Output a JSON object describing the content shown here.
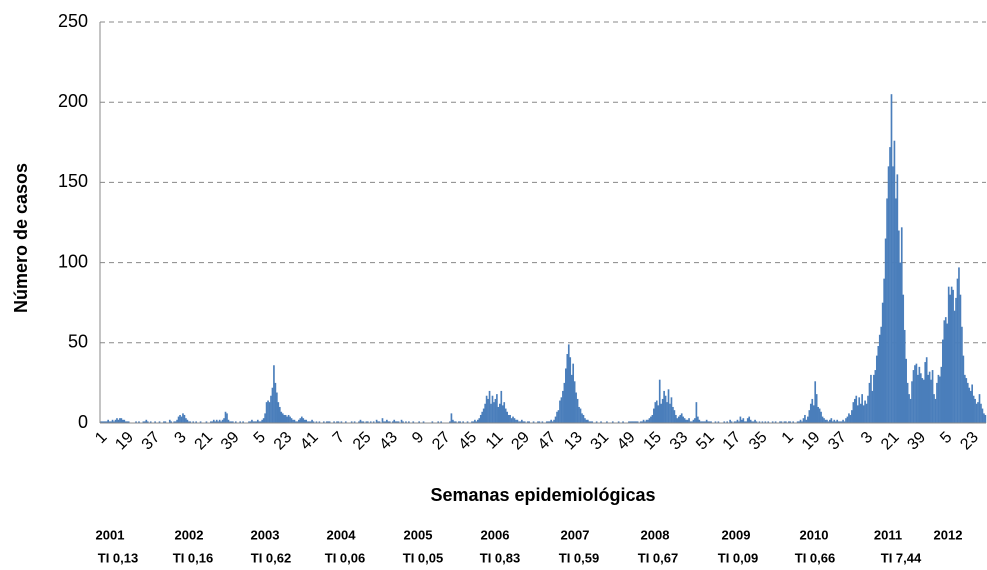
{
  "chart_data": {
    "type": "bar",
    "x_label": "Semanas epidemiológicas",
    "y_label": "Número de casos",
    "color": "#4a7ebb",
    "ylim": [
      0,
      250
    ],
    "yticks": [
      0,
      50,
      100,
      150,
      200,
      250
    ],
    "grid": true,
    "categories": [
      "1",
      null,
      null,
      null,
      null,
      null,
      null,
      null,
      null,
      null,
      null,
      null,
      null,
      null,
      null,
      null,
      null,
      null,
      "19",
      null,
      null,
      null,
      null,
      null,
      null,
      null,
      null,
      null,
      null,
      null,
      null,
      null,
      null,
      null,
      null,
      null,
      "37",
      null,
      null,
      null,
      null,
      null,
      null,
      null,
      null,
      null,
      null,
      null,
      null,
      null,
      null,
      null,
      null,
      null,
      "3",
      null,
      null,
      null,
      null,
      null,
      null,
      null,
      null,
      null,
      null,
      null,
      null,
      null,
      null,
      null,
      null,
      null,
      "21",
      null,
      null,
      null,
      null,
      null,
      null,
      null,
      null,
      null,
      null,
      null,
      null,
      null,
      null,
      null,
      null,
      null,
      "39",
      null,
      null,
      null,
      null,
      null,
      null,
      null,
      null,
      null,
      null,
      null,
      null,
      null,
      null,
      null,
      null,
      null,
      "5",
      null,
      null,
      null,
      null,
      null,
      null,
      null,
      null,
      null,
      null,
      null,
      null,
      null,
      null,
      null,
      null,
      null,
      "23",
      null,
      null,
      null,
      null,
      null,
      null,
      null,
      null,
      null,
      null,
      null,
      null,
      null,
      null,
      null,
      null,
      null,
      "41",
      null,
      null,
      null,
      null,
      null,
      null,
      null,
      null,
      null,
      null,
      null,
      null,
      null,
      null,
      null,
      null,
      null,
      "7",
      null,
      null,
      null,
      null,
      null,
      null,
      null,
      null,
      null,
      null,
      null,
      null,
      null,
      null,
      null,
      null,
      null,
      "25",
      null,
      null,
      null,
      null,
      null,
      null,
      null,
      null,
      null,
      null,
      null,
      null,
      null,
      null,
      null,
      null,
      null,
      "43",
      null,
      null,
      null,
      null,
      null,
      null,
      null,
      null,
      null,
      null,
      null,
      null,
      null,
      null,
      null,
      null,
      null,
      "9",
      null,
      null,
      null,
      null,
      null,
      null,
      null,
      null,
      null,
      null,
      null,
      null,
      null,
      null,
      null,
      null,
      null,
      "27",
      null,
      null,
      null,
      null,
      null,
      null,
      null,
      null,
      null,
      null,
      null,
      null,
      null,
      null,
      null,
      null,
      null,
      "45",
      null,
      null,
      null,
      null,
      null,
      null,
      null,
      null,
      null,
      null,
      null,
      null,
      null,
      null,
      null,
      null,
      null,
      "11",
      null,
      null,
      null,
      null,
      null,
      null,
      null,
      null,
      null,
      null,
      null,
      null,
      null,
      null,
      null,
      null,
      null,
      "29",
      null,
      null,
      null,
      null,
      null,
      null,
      null,
      null,
      null,
      null,
      null,
      null,
      null,
      null,
      null,
      null,
      null,
      "47",
      null,
      null,
      null,
      null,
      null,
      null,
      null,
      null,
      null,
      null,
      null,
      null,
      null,
      null,
      null,
      null,
      null,
      "13",
      null,
      null,
      null,
      null,
      null,
      null,
      null,
      null,
      null,
      null,
      null,
      null,
      null,
      null,
      null,
      null,
      null,
      "31",
      null,
      null,
      null,
      null,
      null,
      null,
      null,
      null,
      null,
      null,
      null,
      null,
      null,
      null,
      null,
      null,
      null,
      "49",
      null,
      null,
      null,
      null,
      null,
      null,
      null,
      null,
      null,
      null,
      null,
      null,
      null,
      null,
      null,
      null,
      null,
      "15",
      null,
      null,
      null,
      null,
      null,
      null,
      null,
      null,
      null,
      null,
      null,
      null,
      null,
      null,
      null,
      null,
      null,
      "33",
      null,
      null,
      null,
      null,
      null,
      null,
      null,
      null,
      null,
      null,
      null,
      null,
      null,
      null,
      null,
      null,
      null,
      "51",
      null,
      null,
      null,
      null,
      null,
      null,
      null,
      null,
      null,
      null,
      null,
      null,
      null,
      null,
      null,
      null,
      null,
      "17",
      null,
      null,
      null,
      null,
      null,
      null,
      null,
      null,
      null,
      null,
      null,
      null,
      null,
      null,
      null,
      null,
      null,
      "35",
      null,
      null,
      null,
      null,
      null,
      null,
      null,
      null,
      null,
      null,
      null,
      null,
      null,
      null,
      null,
      null,
      null,
      "1",
      null,
      null,
      null,
      null,
      null,
      null,
      null,
      null,
      null,
      null,
      null,
      null,
      null,
      null,
      null,
      null,
      null,
      "19",
      null,
      null,
      null,
      null,
      null,
      null,
      null,
      null,
      null,
      null,
      null,
      null,
      null,
      null,
      null,
      null,
      null,
      "37",
      null,
      null,
      null,
      null,
      null,
      null,
      null,
      null,
      null,
      null,
      null,
      null,
      null,
      null,
      null,
      null,
      null,
      "3",
      null,
      null,
      null,
      null,
      null,
      null,
      null,
      null,
      null,
      null,
      null,
      null,
      null,
      null,
      null,
      null,
      null,
      "21",
      null,
      null,
      null,
      null,
      null,
      null,
      null,
      null,
      null,
      null,
      null,
      null,
      null,
      null,
      null,
      null,
      null,
      "39",
      null,
      null,
      null,
      null,
      null,
      null,
      null,
      null,
      null,
      null,
      null,
      null,
      null,
      null,
      null,
      null,
      null,
      "5",
      null,
      null,
      null,
      null,
      null,
      null,
      null,
      null,
      null,
      null,
      null,
      null,
      null,
      null,
      null,
      null,
      null,
      "23",
      null,
      null,
      null,
      null,
      null,
      null,
      null,
      null,
      null
    ],
    "values": [
      1,
      1,
      1,
      1,
      1,
      2,
      1,
      1,
      2,
      1,
      2,
      3,
      2,
      3,
      3,
      2,
      2,
      1,
      1,
      1,
      0,
      0,
      0,
      0,
      1,
      0,
      1,
      0,
      0,
      1,
      1,
      2,
      1,
      0,
      1,
      0,
      0,
      1,
      0,
      0,
      1,
      0,
      0,
      1,
      1,
      0,
      0,
      2,
      1,
      0,
      1,
      1,
      2,
      4,
      5,
      4,
      6,
      5,
      3,
      2,
      1,
      1,
      0,
      1,
      0,
      1,
      0,
      0,
      1,
      0,
      0,
      0,
      1,
      0,
      0,
      1,
      1,
      2,
      1,
      2,
      1,
      2,
      1,
      2,
      3,
      7,
      6,
      2,
      1,
      1,
      1,
      0,
      1,
      0,
      0,
      1,
      0,
      1,
      0,
      0,
      0,
      1,
      1,
      2,
      1,
      1,
      1,
      2,
      1,
      1,
      2,
      3,
      6,
      13,
      14,
      13,
      17,
      22,
      36,
      25,
      19,
      13,
      10,
      7,
      6,
      5,
      5,
      4,
      5,
      4,
      3,
      2,
      2,
      1,
      1,
      2,
      3,
      4,
      3,
      2,
      2,
      1,
      1,
      1,
      2,
      1,
      0,
      1,
      0,
      1,
      0,
      0,
      1,
      0,
      1,
      1,
      1,
      0,
      0,
      1,
      0,
      1,
      1,
      0,
      1,
      0,
      0,
      1,
      0,
      0,
      0,
      1,
      0,
      1,
      0,
      0,
      1,
      2,
      1,
      1,
      0,
      1,
      1,
      0,
      1,
      0,
      1,
      0,
      2,
      1,
      1,
      0,
      3,
      1,
      1,
      2,
      1,
      1,
      0,
      1,
      2,
      1,
      1,
      1,
      0,
      2,
      1,
      0,
      1,
      0,
      1,
      0,
      0,
      1,
      0,
      0,
      0,
      1,
      0,
      0,
      1,
      0,
      0,
      0,
      0,
      0,
      1,
      0,
      0,
      0,
      1,
      0,
      1,
      0,
      0,
      0,
      0,
      0,
      1,
      6,
      2,
      1,
      1,
      0,
      1,
      1,
      0,
      1,
      0,
      0,
      1,
      0,
      0,
      1,
      1,
      2,
      1,
      2,
      3,
      5,
      7,
      9,
      12,
      17,
      15,
      20,
      12,
      17,
      13,
      15,
      18,
      10,
      12,
      20,
      11,
      13,
      9,
      7,
      5,
      5,
      3,
      4,
      3,
      2,
      2,
      1,
      1,
      2,
      1,
      1,
      0,
      1,
      1,
      0,
      0,
      1,
      0,
      0,
      1,
      1,
      0,
      1,
      0,
      0,
      1,
      1,
      1,
      2,
      1,
      2,
      4,
      7,
      8,
      14,
      16,
      20,
      25,
      34,
      43,
      49,
      41,
      30,
      37,
      26,
      19,
      15,
      10,
      9,
      6,
      5,
      3,
      2,
      2,
      1,
      1,
      1,
      0,
      0,
      1,
      0,
      0,
      1,
      0,
      0,
      0,
      1,
      0,
      0,
      0,
      1,
      0,
      0,
      0,
      1,
      0,
      0,
      1,
      0,
      0,
      0,
      1,
      1,
      1,
      1,
      1,
      1,
      1,
      0,
      1,
      1,
      2,
      1,
      2,
      2,
      3,
      4,
      5,
      9,
      13,
      14,
      11,
      27,
      12,
      15,
      20,
      17,
      13,
      21,
      12,
      16,
      10,
      8,
      5,
      3,
      4,
      5,
      6,
      4,
      3,
      2,
      2,
      3,
      1,
      1,
      2,
      3,
      13,
      4,
      2,
      1,
      1,
      1,
      1,
      2,
      1,
      1,
      1,
      0,
      0,
      1,
      0,
      1,
      0,
      0,
      0,
      1,
      0,
      1,
      0,
      2,
      1,
      0,
      1,
      1,
      2,
      1,
      4,
      2,
      3,
      1,
      1,
      3,
      4,
      2,
      1,
      1,
      2,
      1,
      0,
      1,
      0,
      1,
      0,
      1,
      0,
      1,
      0,
      0,
      1,
      0,
      1,
      0,
      0,
      1,
      1,
      0,
      1,
      1,
      0,
      1,
      1,
      0,
      1,
      0,
      0,
      1,
      1,
      2,
      1,
      3,
      5,
      2,
      4,
      8,
      12,
      15,
      11,
      26,
      18,
      10,
      9,
      7,
      4,
      3,
      2,
      2,
      1,
      2,
      3,
      1,
      2,
      1,
      2,
      1,
      1,
      1,
      2,
      1,
      3,
      4,
      6,
      5,
      8,
      13,
      15,
      17,
      11,
      16,
      12,
      18,
      11,
      14,
      12,
      17,
      25,
      30,
      20,
      30,
      33,
      42,
      48,
      55,
      60,
      75,
      90,
      115,
      140,
      160,
      172,
      205,
      160,
      176,
      140,
      155,
      120,
      100,
      122,
      80,
      58,
      40,
      25,
      18,
      15,
      26,
      33,
      36,
      37,
      30,
      35,
      31,
      28,
      27,
      38,
      41,
      30,
      32,
      27,
      33,
      18,
      15,
      25,
      30,
      29,
      35,
      52,
      64,
      66,
      62,
      85,
      80,
      85,
      83,
      70,
      78,
      90,
      97,
      80,
      60,
      42,
      30,
      28,
      25,
      22,
      20,
      24,
      17,
      15,
      12,
      13,
      18,
      12,
      9,
      6,
      5
    ],
    "annotations": {
      "years": [
        "2001",
        "2002",
        "2003",
        "2004",
        "2005",
        "2006",
        "2007",
        "2008",
        "2009",
        "2010",
        "2011",
        "2012"
      ],
      "rates": [
        "TI 0,13",
        "TI 0,16",
        "TI 0,62",
        "TI 0,06",
        "TI 0,05",
        "TI 0,83",
        "TI 0,59",
        "TI 0,67",
        "TI 0,09",
        "TI 0,66",
        "TI 7,44"
      ]
    }
  }
}
